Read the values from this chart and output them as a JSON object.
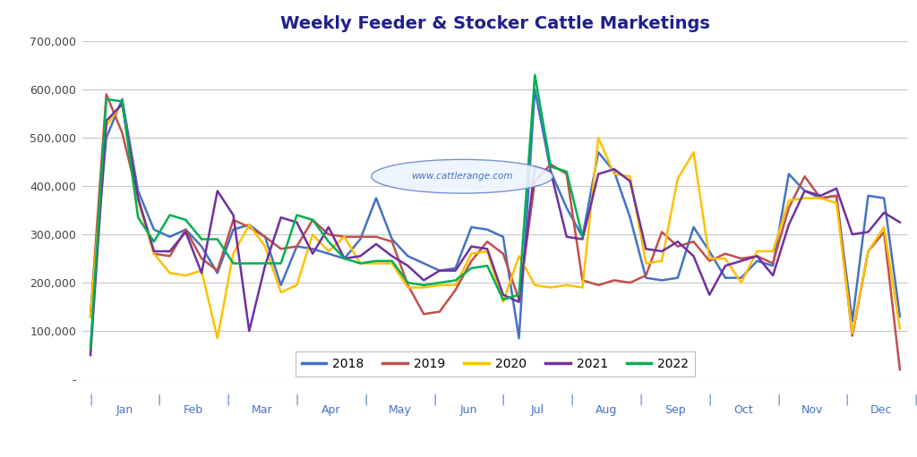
{
  "title": "Weekly Feeder & Stocker Cattle Marketings",
  "colors": {
    "2018": "#4472C4",
    "2019": "#C0504D",
    "2020": "#FFC000",
    "2021": "#7030A0",
    "2022": "#00B050"
  },
  "years": [
    "2018",
    "2019",
    "2020",
    "2021",
    "2022"
  ],
  "data": {
    "2018": [
      130000,
      500000,
      580000,
      390000,
      310000,
      295000,
      310000,
      275000,
      220000,
      310000,
      320000,
      295000,
      195000,
      275000,
      270000,
      260000,
      250000,
      290000,
      375000,
      290000,
      255000,
      240000,
      225000,
      230000,
      315000,
      310000,
      295000,
      85000,
      600000,
      430000,
      355000,
      295000,
      470000,
      430000,
      335000,
      210000,
      205000,
      210000,
      315000,
      265000,
      210000,
      210000,
      245000,
      235000,
      425000,
      390000,
      375000,
      380000,
      120000,
      380000,
      375000,
      130000
    ],
    "2019": [
      130000,
      590000,
      510000,
      375000,
      260000,
      255000,
      310000,
      250000,
      225000,
      330000,
      315000,
      295000,
      270000,
      275000,
      330000,
      300000,
      295000,
      295000,
      295000,
      285000,
      195000,
      135000,
      140000,
      185000,
      245000,
      285000,
      260000,
      165000,
      410000,
      445000,
      425000,
      205000,
      195000,
      205000,
      200000,
      215000,
      305000,
      275000,
      285000,
      245000,
      260000,
      250000,
      255000,
      240000,
      355000,
      420000,
      375000,
      380000,
      90000,
      265000,
      305000,
      20000
    ],
    "2020": [
      130000,
      525000,
      570000,
      370000,
      260000,
      220000,
      215000,
      225000,
      85000,
      260000,
      320000,
      275000,
      180000,
      195000,
      300000,
      265000,
      295000,
      240000,
      240000,
      240000,
      190000,
      190000,
      195000,
      195000,
      260000,
      265000,
      160000,
      255000,
      195000,
      190000,
      195000,
      190000,
      500000,
      425000,
      420000,
      240000,
      245000,
      415000,
      470000,
      250000,
      250000,
      200000,
      265000,
      265000,
      370000,
      375000,
      375000,
      365000,
      95000,
      265000,
      315000,
      105000
    ],
    "2021": [
      50000,
      535000,
      570000,
      375000,
      265000,
      265000,
      305000,
      220000,
      390000,
      340000,
      100000,
      235000,
      335000,
      325000,
      260000,
      315000,
      250000,
      255000,
      280000,
      255000,
      235000,
      205000,
      225000,
      225000,
      275000,
      270000,
      175000,
      160000,
      440000,
      430000,
      295000,
      290000,
      425000,
      435000,
      410000,
      270000,
      265000,
      285000,
      255000,
      175000,
      235000,
      245000,
      255000,
      215000,
      320000,
      390000,
      380000,
      395000,
      300000,
      305000,
      345000,
      325000
    ],
    "2022": [
      65000,
      580000,
      575000,
      335000,
      285000,
      340000,
      330000,
      290000,
      290000,
      240000,
      240000,
      240000,
      240000,
      340000,
      330000,
      285000,
      250000,
      240000,
      245000,
      245000,
      200000,
      195000,
      200000,
      205000,
      230000,
      235000,
      165000,
      175000,
      630000,
      440000,
      430000,
      295000,
      null,
      null,
      null,
      null,
      null,
      null,
      null,
      null,
      null,
      null,
      null,
      null,
      null,
      null,
      null,
      null,
      null,
      null,
      null,
      null
    ]
  },
  "ylim": [
    0,
    700000
  ],
  "yticks": [
    0,
    100000,
    200000,
    300000,
    400000,
    500000,
    600000,
    700000
  ],
  "ytick_labels": [
    "-",
    "100,000",
    "200,000",
    "300,000",
    "400,000",
    "500,000",
    "600,000",
    "700,000"
  ],
  "month_labels": [
    "Jan",
    "Feb",
    "Mar",
    "Apr",
    "May",
    "Jun",
    "Jul",
    "Aug",
    "Sep",
    "Oct",
    "Nov",
    "Dec"
  ],
  "watermark": "www.cattlerange.com",
  "background_color": "#FFFFFF",
  "plot_bg_color": "#FFFFFF",
  "grid_color": "#C8C8C8",
  "title_color": "#1F1F8F",
  "axis_label_color": "#4472C4",
  "legend_border_color": "#AAAAAA"
}
